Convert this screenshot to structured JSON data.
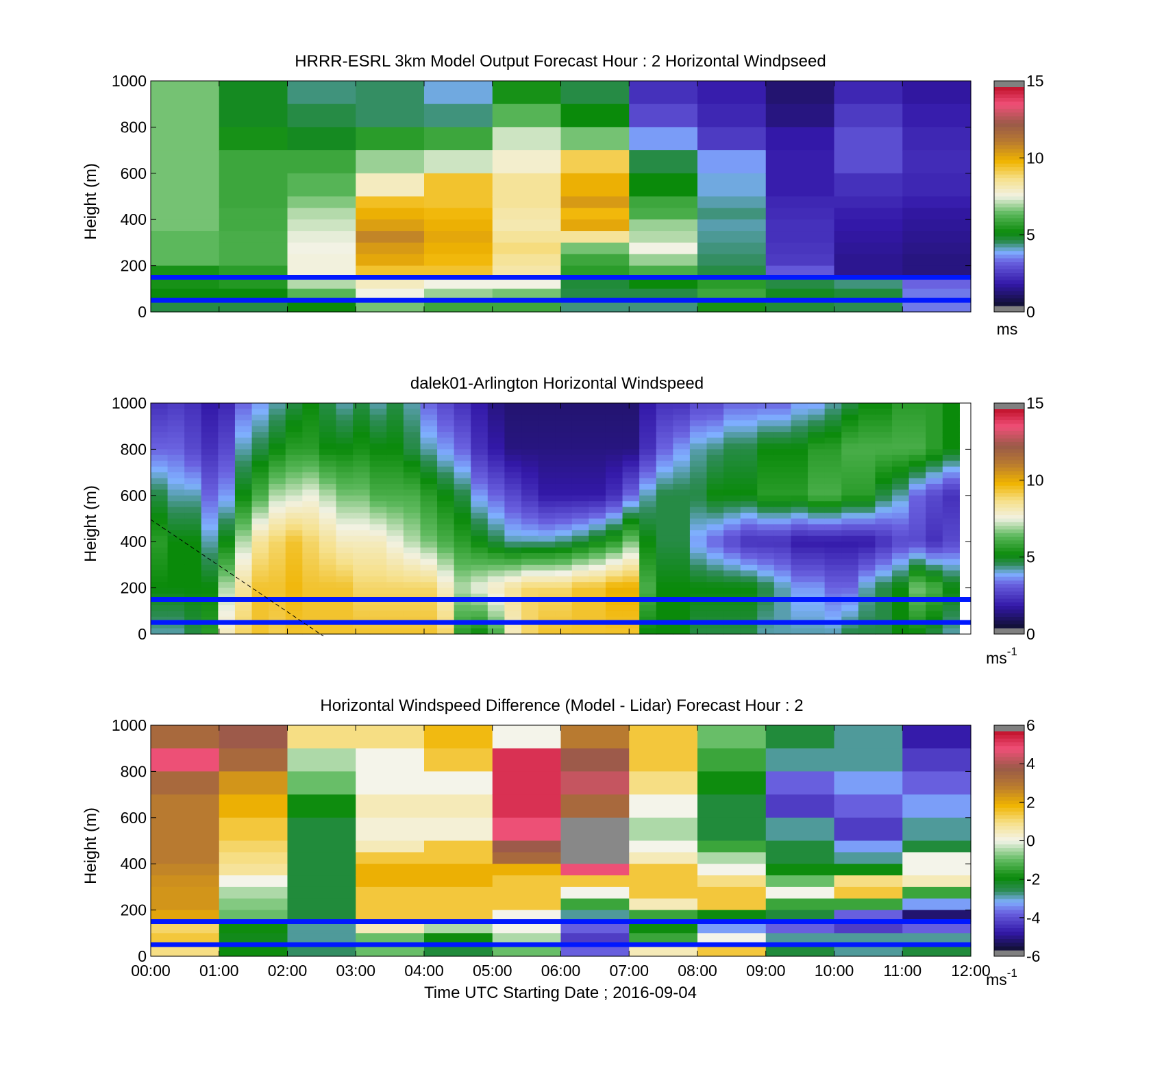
{
  "figure": {
    "xlabel": "Time UTC  Starting Date ; 2016-09-04"
  },
  "chart_data": [
    {
      "type": "heatmap",
      "title": "HRRR-ESRL 3km Model Output   Forecast Hour : 2 Horizontal Windpseed",
      "ylabel": "Height (m)",
      "xlabel": "",
      "xlim": [
        "00:00",
        "12:00"
      ],
      "ylim": [
        0,
        1000
      ],
      "yticks": [
        "0",
        "200",
        "400",
        "600",
        "800",
        "1000"
      ],
      "xticks": [],
      "colorbar": {
        "ticks": [
          "0",
          "5",
          "10",
          "15"
        ],
        "unit": "ms",
        "unit_sup": "",
        "range": [
          0,
          15
        ]
      },
      "grid": false,
      "reference_heights": [
        150,
        50
      ],
      "columns": 12,
      "row_heights": [
        1000,
        900,
        800,
        700,
        600,
        500,
        450,
        400,
        350,
        300,
        250,
        200,
        150,
        100,
        50,
        0
      ],
      "values": [
        [
          6.5,
          6.5,
          6.5,
          6.5,
          6.5,
          6.5,
          6.5,
          6.5,
          6.3,
          6.3,
          6.3,
          5.2,
          5.2,
          5.0,
          4.5
        ],
        [
          4.8,
          4.8,
          5.2,
          5.8,
          5.8,
          5.8,
          5.9,
          5.9,
          6.0,
          6.0,
          6.0,
          5.5,
          5.4,
          5.0,
          4.5
        ],
        [
          4.2,
          4.5,
          4.8,
          5.8,
          6.2,
          6.6,
          7.0,
          7.2,
          7.4,
          7.5,
          7.6,
          7.6,
          7.0,
          6.2,
          5.0
        ],
        [
          4.3,
          4.3,
          5.5,
          6.8,
          8.0,
          9.6,
          10.0,
          10.4,
          11.0,
          10.5,
          10.2,
          9.5,
          8.0,
          7.5,
          6.5
        ],
        [
          3.8,
          4.2,
          5.8,
          7.2,
          9.5,
          9.5,
          9.8,
          10.0,
          10.2,
          10.0,
          9.8,
          9.5,
          7.5,
          6.8,
          5.8
        ],
        [
          5.2,
          6.2,
          7.2,
          7.8,
          8.5,
          8.5,
          8.3,
          8.2,
          8.5,
          8.8,
          8.5,
          8.3,
          7.5,
          6.5,
          5.8
        ],
        [
          4.5,
          5.0,
          6.5,
          9.2,
          10.0,
          10.5,
          9.8,
          10.2,
          8.5,
          6.5,
          5.8,
          5.5,
          4.6,
          4.5,
          4.2
        ],
        [
          2.0,
          2.5,
          3.5,
          4.5,
          5.0,
          5.8,
          6.0,
          6.8,
          7.0,
          7.5,
          6.8,
          6.0,
          5.0,
          4.5,
          4.2
        ],
        [
          1.6,
          1.8,
          2.2,
          3.5,
          3.8,
          4.0,
          4.2,
          4.0,
          4.1,
          4.2,
          4.3,
          4.5,
          5.5,
          5.8,
          5.2
        ],
        [
          0.8,
          1.0,
          1.5,
          1.6,
          1.6,
          1.8,
          1.9,
          2.0,
          2.0,
          2.1,
          2.2,
          2.8,
          4.5,
          4.8,
          4.6
        ],
        [
          1.8,
          2.2,
          2.6,
          2.6,
          2.0,
          1.8,
          1.6,
          1.5,
          1.4,
          1.3,
          1.2,
          1.2,
          4.2,
          4.6,
          4.4
        ],
        [
          1.4,
          1.6,
          1.8,
          1.9,
          1.8,
          1.6,
          1.4,
          1.3,
          1.2,
          1.1,
          1.0,
          1.0,
          3.0,
          3.2,
          3.2
        ]
      ]
    },
    {
      "type": "heatmap",
      "title": "dalek01-Arlington  Horizontal Windspeed",
      "ylabel": "Height (m)",
      "xlabel": "",
      "xlim": [
        "00:00",
        "12:00"
      ],
      "ylim": [
        0,
        1000
      ],
      "yticks": [
        "0",
        "200",
        "400",
        "600",
        "800",
        "1000"
      ],
      "xticks": [],
      "colorbar": {
        "ticks": [
          "0",
          "5",
          "10",
          "15"
        ],
        "unit": "ms",
        "unit_sup": "-1",
        "range": [
          0,
          15
        ]
      },
      "grid": false,
      "reference_heights": [
        150,
        50
      ],
      "columns": 48,
      "data_end": "11:50",
      "layers": [
        1000,
        800,
        600,
        400,
        200,
        0
      ],
      "profiles": [
        [
          2.0,
          3.0,
          4.5,
          5.5,
          5.0,
          4.0
        ],
        [
          2.2,
          3.0,
          4.0,
          5.0,
          5.0,
          4.0
        ],
        [
          2.0,
          2.5,
          4.0,
          5.0,
          5.0,
          4.5
        ],
        [
          1.5,
          2.0,
          3.0,
          4.0,
          5.0,
          5.5
        ],
        [
          1.8,
          2.5,
          3.5,
          5.0,
          7.0,
          8.0
        ],
        [
          3.0,
          4.0,
          5.0,
          7.0,
          8.5,
          9.0
        ],
        [
          3.5,
          4.5,
          6.0,
          8.5,
          9.5,
          9.5
        ],
        [
          4.0,
          5.0,
          7.0,
          9.0,
          9.5,
          9.2
        ],
        [
          4.5,
          5.5,
          7.2,
          9.5,
          9.8,
          9.5
        ],
        [
          5.0,
          5.5,
          7.5,
          9.0,
          9.5,
          9.5
        ],
        [
          4.5,
          5.0,
          7.0,
          8.5,
          9.5,
          9.5
        ],
        [
          4.0,
          5.0,
          6.5,
          8.0,
          9.5,
          9.5
        ],
        [
          4.5,
          5.2,
          6.5,
          8.0,
          9.0,
          9.5
        ],
        [
          4.0,
          5.0,
          6.0,
          8.0,
          9.0,
          9.5
        ],
        [
          4.5,
          5.0,
          6.0,
          7.5,
          9.0,
          9.5
        ],
        [
          4.0,
          4.5,
          6.0,
          7.0,
          9.0,
          9.5
        ],
        [
          3.0,
          4.0,
          5.5,
          6.5,
          9.0,
          9.5
        ],
        [
          2.5,
          3.5,
          5.0,
          6.0,
          8.0,
          9.0
        ],
        [
          2.0,
          3.0,
          4.5,
          5.5,
          7.0,
          5.5
        ],
        [
          1.5,
          2.0,
          3.5,
          5.0,
          7.5,
          5.0
        ],
        [
          1.0,
          1.5,
          3.0,
          4.5,
          8.0,
          6.0
        ],
        [
          0.8,
          1.0,
          2.5,
          4.0,
          8.5,
          8.0
        ],
        [
          0.8,
          1.0,
          2.0,
          4.0,
          9.0,
          9.0
        ],
        [
          0.8,
          1.0,
          1.5,
          4.0,
          9.0,
          9.5
        ],
        [
          0.8,
          1.0,
          1.5,
          4.2,
          9.0,
          9.5
        ],
        [
          0.8,
          1.0,
          1.5,
          4.5,
          9.5,
          9.5
        ],
        [
          0.8,
          1.0,
          1.5,
          5.0,
          9.5,
          9.5
        ],
        [
          0.8,
          1.0,
          2.0,
          5.5,
          10.0,
          9.5
        ],
        [
          0.8,
          1.0,
          3.0,
          6.5,
          10.0,
          9.5
        ],
        [
          1.5,
          2.0,
          4.0,
          5.0,
          6.0,
          5.0
        ],
        [
          2.0,
          3.0,
          4.5,
          4.5,
          5.0,
          5.0
        ],
        [
          2.0,
          3.5,
          4.5,
          4.5,
          5.0,
          5.0
        ],
        [
          2.5,
          4.0,
          4.5,
          3.5,
          5.0,
          4.5
        ],
        [
          2.5,
          4.2,
          5.0,
          3.0,
          5.0,
          4.5
        ],
        [
          3.0,
          4.5,
          5.0,
          2.5,
          5.0,
          4.5
        ],
        [
          3.0,
          4.5,
          5.0,
          2.0,
          5.0,
          4.5
        ],
        [
          3.0,
          5.0,
          5.5,
          2.0,
          4.5,
          4.0
        ],
        [
          3.0,
          5.0,
          5.5,
          2.0,
          4.0,
          4.0
        ],
        [
          3.5,
          5.0,
          5.5,
          1.5,
          3.5,
          4.0
        ],
        [
          3.5,
          5.5,
          6.0,
          1.5,
          3.5,
          4.0
        ],
        [
          4.0,
          5.5,
          6.0,
          1.5,
          3.0,
          4.0
        ],
        [
          4.5,
          6.0,
          5.5,
          1.5,
          3.0,
          4.5
        ],
        [
          5.0,
          6.0,
          5.5,
          1.5,
          4.0,
          4.5
        ],
        [
          5.0,
          6.0,
          4.5,
          2.0,
          4.5,
          4.5
        ],
        [
          5.5,
          6.0,
          4.0,
          2.5,
          5.0,
          5.0
        ],
        [
          5.5,
          6.0,
          3.0,
          2.5,
          6.5,
          5.0
        ],
        [
          5.5,
          5.5,
          2.5,
          2.0,
          6.0,
          4.5
        ],
        [
          5.0,
          5.0,
          2.0,
          2.5,
          5.0,
          4.0
        ]
      ]
    },
    {
      "type": "heatmap",
      "title": "Horizontal Windspeed Difference (Model - Lidar) Forecast Hour : 2",
      "ylabel": "Height (m)",
      "xlabel": "Time UTC  Starting Date ; 2016-09-04",
      "xlim": [
        "00:00",
        "12:00"
      ],
      "ylim": [
        0,
        1000
      ],
      "yticks": [
        "0",
        "200",
        "400",
        "600",
        "800",
        "1000"
      ],
      "xticks": [
        "00:00",
        "01:00",
        "02:00",
        "03:00",
        "04:00",
        "05:00",
        "06:00",
        "07:00",
        "08:00",
        "09:00",
        "10:00",
        "11:00",
        "12:00"
      ],
      "colorbar": {
        "ticks": [
          "-6",
          "-4",
          "-2",
          "0",
          "2",
          "4",
          "6"
        ],
        "unit": "ms",
        "unit_sup": "-1",
        "range": [
          -6,
          6
        ]
      },
      "grid": false,
      "reference_heights": [
        150,
        50
      ],
      "columns": 12,
      "row_heights": [
        1000,
        900,
        800,
        700,
        600,
        500,
        450,
        400,
        350,
        300,
        250,
        200,
        150,
        100,
        50,
        0
      ],
      "values": [
        [
          3.5,
          5.0,
          3.5,
          3.0,
          3.0,
          3.0,
          3.0,
          2.8,
          2.6,
          2.5,
          2.5,
          2.2,
          1.2,
          1.5,
          1.0
        ],
        [
          4.0,
          3.5,
          2.5,
          2.0,
          1.5,
          1.2,
          1.0,
          0.8,
          0.0,
          -0.5,
          -0.8,
          -1.0,
          -2.0,
          -2.2,
          -2.0
        ],
        [
          1.0,
          -0.5,
          -1.0,
          -2.0,
          -2.5,
          -2.5,
          -2.5,
          -2.5,
          -2.5,
          -2.5,
          -2.5,
          -2.5,
          -3.0,
          -3.0,
          -2.8
        ],
        [
          1.0,
          0.0,
          0.0,
          0.5,
          0.2,
          0.5,
          1.5,
          2.0,
          2.0,
          1.5,
          1.5,
          1.5,
          0.5,
          -1.0,
          -1.0
        ],
        [
          1.8,
          1.5,
          0.0,
          0.5,
          0.2,
          1.5,
          1.5,
          2.0,
          2.0,
          1.5,
          1.5,
          1.5,
          -0.5,
          -2.0,
          -2.5
        ],
        [
          0.0,
          5.5,
          5.5,
          5.5,
          5.0,
          4.0,
          3.5,
          2.0,
          1.5,
          1.5,
          1.5,
          0.0,
          0.0,
          -0.5,
          -1.0
        ],
        [
          3.0,
          4.0,
          4.5,
          3.5,
          -99,
          -99,
          -99,
          5.0,
          1.5,
          0.0,
          -1.5,
          -3.0,
          -4.0,
          -4.5,
          -4.0
        ],
        [
          1.5,
          1.5,
          1.0,
          0.0,
          -0.5,
          0.0,
          0.5,
          1.5,
          1.5,
          1.5,
          0.5,
          -1.5,
          -2.0,
          -1.5,
          0.5
        ],
        [
          -1.0,
          -1.5,
          -2.0,
          -2.5,
          -2.5,
          -1.5,
          -0.5,
          0.0,
          1.0,
          1.5,
          1.5,
          -2.0,
          -3.5,
          0.0,
          1.5
        ],
        [
          -2.5,
          -3.0,
          -4.0,
          -4.5,
          -3.0,
          -2.5,
          -2.5,
          -2.0,
          -1.0,
          0.0,
          -1.5,
          -2.5,
          -4.0,
          -3.0,
          -2.5
        ],
        [
          -3.0,
          -3.0,
          -3.5,
          -4.0,
          -4.5,
          -3.5,
          -3.0,
          -2.0,
          1.0,
          1.5,
          -1.5,
          -4.0,
          -4.5,
          -3.0,
          -3.0
        ],
        [
          -5.0,
          -4.5,
          -4.0,
          -3.5,
          -3.0,
          -2.5,
          0.0,
          0.0,
          0.5,
          -1.5,
          -3.5,
          -5.5,
          -4.0,
          -3.0,
          -2.5
        ]
      ]
    }
  ]
}
